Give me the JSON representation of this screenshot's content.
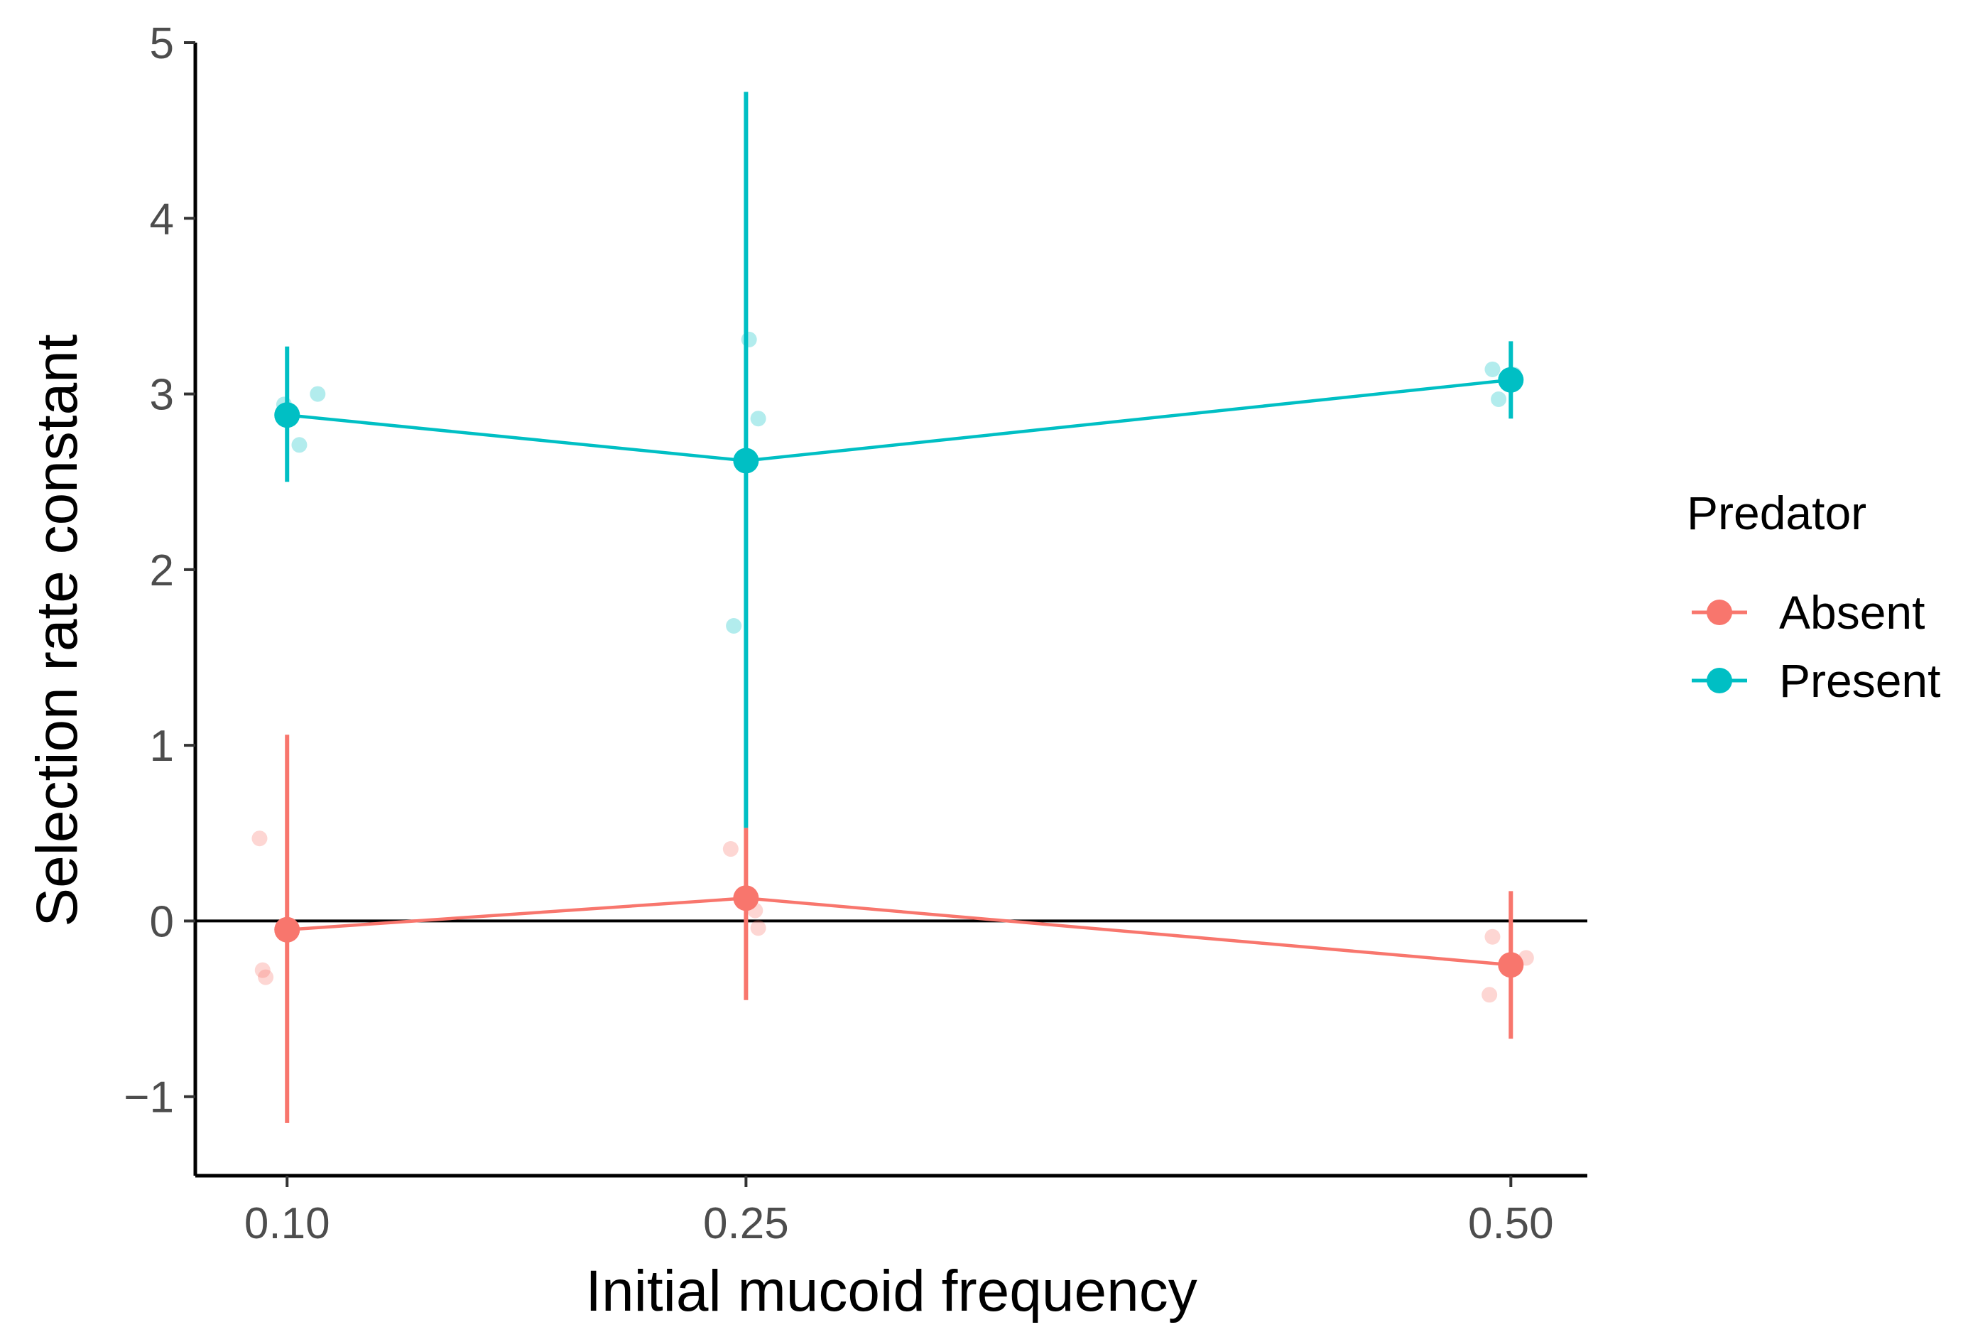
{
  "chart_data": {
    "type": "line",
    "title": "",
    "xlabel": "Initial mucoid frequency",
    "ylabel": "Selection rate constant",
    "x_type": "categorical-continuous",
    "categories": [
      "0.10",
      "0.25",
      "0.50"
    ],
    "x": [
      0.1,
      0.25,
      0.5
    ],
    "xlim": [
      0.07,
      0.525
    ],
    "ylim": [
      -1.45,
      5.0
    ],
    "yticks": [
      -1,
      0,
      1,
      2,
      3,
      4,
      5
    ],
    "ytick_labels": [
      "−1",
      "0",
      "1",
      "2",
      "3",
      "4",
      "5"
    ],
    "reference_line": {
      "y": 0
    },
    "grid": false,
    "legend": {
      "title": "Predator",
      "position": "right"
    },
    "series": [
      {
        "name": "Absent",
        "color": "#F8766D",
        "means": [
          -0.05,
          0.13,
          -0.25
        ],
        "error_low": [
          -1.15,
          -0.45,
          -0.67
        ],
        "error_high": [
          1.06,
          0.53,
          0.17
        ],
        "replicates": [
          {
            "x": 0.1,
            "dx": -0.009,
            "y": 0.47
          },
          {
            "x": 0.1,
            "dx": -0.008,
            "y": -0.28
          },
          {
            "x": 0.1,
            "dx": -0.007,
            "y": -0.32
          },
          {
            "x": 0.25,
            "dx": -0.005,
            "y": 0.41
          },
          {
            "x": 0.25,
            "dx": 0.003,
            "y": 0.06
          },
          {
            "x": 0.25,
            "dx": 0.004,
            "y": -0.04
          },
          {
            "x": 0.5,
            "dx": -0.007,
            "y": -0.42
          },
          {
            "x": 0.5,
            "dx": -0.006,
            "y": -0.09
          },
          {
            "x": 0.5,
            "dx": 0.005,
            "y": -0.21
          }
        ]
      },
      {
        "name": "Present",
        "color": "#00BFC4",
        "means": [
          2.88,
          2.62,
          3.08
        ],
        "error_low": [
          2.5,
          0.53,
          2.86
        ],
        "error_high": [
          3.27,
          4.72,
          3.3
        ],
        "replicates": [
          {
            "x": 0.1,
            "dx": -0.001,
            "y": 2.94
          },
          {
            "x": 0.1,
            "dx": 0.004,
            "y": 2.71
          },
          {
            "x": 0.1,
            "dx": 0.01,
            "y": 3.0
          },
          {
            "x": 0.25,
            "dx": -0.004,
            "y": 1.68
          },
          {
            "x": 0.25,
            "dx": 0.001,
            "y": 3.31
          },
          {
            "x": 0.25,
            "dx": 0.004,
            "y": 2.86
          },
          {
            "x": 0.5,
            "dx": -0.006,
            "y": 3.14
          },
          {
            "x": 0.5,
            "dx": -0.004,
            "y": 2.97
          },
          {
            "x": 0.5,
            "dx": 0.001,
            "y": 3.11
          }
        ]
      }
    ]
  }
}
